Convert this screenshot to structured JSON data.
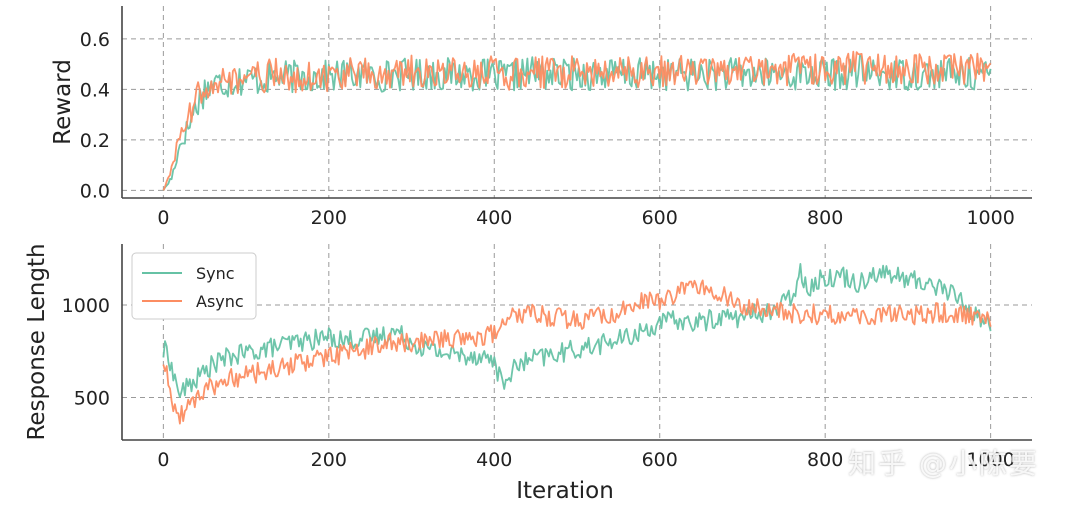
{
  "watermark": "知乎 @小陈要",
  "colors": {
    "sync": "#66c2a5",
    "async": "#fc8d62"
  },
  "chart_data": [
    {
      "type": "line",
      "xlabel": "",
      "ylabel": "Reward",
      "xlim": [
        -50,
        1050
      ],
      "ylim": [
        -0.03,
        0.73
      ],
      "xticks": [
        0,
        200,
        400,
        600,
        800,
        1000
      ],
      "yticks": [
        0.0,
        0.2,
        0.4,
        0.6
      ],
      "ytick_labels": [
        "0.0",
        "0.2",
        "0.4",
        "0.6"
      ],
      "grid": true,
      "series": [
        {
          "key": "sync",
          "x": [
            0,
            10,
            20,
            30,
            40,
            50,
            60,
            80,
            100,
            120,
            140,
            160,
            180,
            200,
            220,
            240,
            260,
            280,
            300,
            320,
            340,
            360,
            380,
            400,
            420,
            440,
            460,
            480,
            500,
            520,
            540,
            560,
            580,
            600,
            620,
            640,
            660,
            680,
            700,
            720,
            740,
            760,
            780,
            800,
            820,
            840,
            860,
            880,
            900,
            920,
            940,
            960,
            980,
            1000
          ],
          "y": [
            0.0,
            0.05,
            0.18,
            0.25,
            0.34,
            0.4,
            0.42,
            0.43,
            0.44,
            0.44,
            0.45,
            0.45,
            0.45,
            0.45,
            0.46,
            0.46,
            0.45,
            0.46,
            0.46,
            0.46,
            0.46,
            0.46,
            0.46,
            0.45,
            0.45,
            0.47,
            0.46,
            0.46,
            0.46,
            0.46,
            0.46,
            0.46,
            0.46,
            0.46,
            0.46,
            0.46,
            0.46,
            0.46,
            0.46,
            0.46,
            0.46,
            0.46,
            0.46,
            0.46,
            0.46,
            0.47,
            0.46,
            0.46,
            0.46,
            0.46,
            0.46,
            0.46,
            0.46,
            0.45
          ]
        },
        {
          "key": "async",
          "x": [
            0,
            10,
            20,
            30,
            40,
            50,
            60,
            80,
            100,
            120,
            140,
            160,
            180,
            200,
            220,
            240,
            260,
            280,
            300,
            320,
            340,
            360,
            380,
            400,
            420,
            440,
            460,
            480,
            500,
            520,
            540,
            560,
            580,
            600,
            620,
            640,
            660,
            680,
            700,
            720,
            740,
            760,
            780,
            800,
            820,
            840,
            860,
            880,
            900,
            920,
            940,
            960,
            980,
            1000
          ],
          "y": [
            0.0,
            0.08,
            0.22,
            0.28,
            0.36,
            0.42,
            0.44,
            0.43,
            0.44,
            0.45,
            0.46,
            0.45,
            0.45,
            0.45,
            0.46,
            0.46,
            0.46,
            0.46,
            0.47,
            0.46,
            0.47,
            0.46,
            0.46,
            0.47,
            0.46,
            0.47,
            0.47,
            0.47,
            0.47,
            0.46,
            0.47,
            0.47,
            0.47,
            0.47,
            0.47,
            0.47,
            0.47,
            0.48,
            0.47,
            0.48,
            0.48,
            0.48,
            0.48,
            0.48,
            0.48,
            0.49,
            0.48,
            0.48,
            0.48,
            0.48,
            0.48,
            0.48,
            0.48,
            0.48
          ]
        }
      ]
    },
    {
      "type": "line",
      "xlabel": "Iteration",
      "ylabel": "Response Length",
      "xlim": [
        -50,
        1050
      ],
      "ylim": [
        270,
        1330
      ],
      "xticks": [
        0,
        200,
        400,
        600,
        800,
        1000
      ],
      "yticks": [
        500,
        1000
      ],
      "ytick_labels": [
        "500",
        "1000"
      ],
      "grid": true,
      "legend": {
        "location": "top-left"
      },
      "series": [
        {
          "key": "sync",
          "name": "Sync",
          "x": [
            0,
            5,
            10,
            20,
            30,
            40,
            60,
            80,
            100,
            120,
            140,
            160,
            180,
            200,
            220,
            240,
            260,
            280,
            300,
            320,
            340,
            360,
            380,
            400,
            410,
            420,
            440,
            460,
            480,
            500,
            520,
            540,
            560,
            580,
            600,
            620,
            640,
            660,
            680,
            700,
            720,
            740,
            760,
            770,
            780,
            800,
            820,
            840,
            860,
            880,
            900,
            920,
            940,
            960,
            980,
            1000
          ],
          "y": [
            740,
            770,
            650,
            520,
            560,
            600,
            680,
            720,
            740,
            760,
            780,
            800,
            810,
            830,
            810,
            820,
            830,
            860,
            800,
            760,
            740,
            730,
            730,
            700,
            560,
            640,
            700,
            720,
            740,
            760,
            780,
            800,
            820,
            860,
            900,
            920,
            900,
            920,
            940,
            930,
            960,
            970,
            1050,
            1180,
            1100,
            1150,
            1160,
            1120,
            1180,
            1160,
            1140,
            1120,
            1100,
            1040,
            950,
            900
          ]
        },
        {
          "key": "async",
          "name": "Async",
          "x": [
            0,
            5,
            10,
            20,
            30,
            40,
            60,
            80,
            100,
            120,
            140,
            160,
            180,
            200,
            220,
            240,
            260,
            280,
            300,
            320,
            340,
            360,
            380,
            400,
            420,
            440,
            460,
            480,
            500,
            520,
            540,
            560,
            580,
            600,
            620,
            640,
            660,
            680,
            700,
            720,
            740,
            760,
            780,
            800,
            820,
            840,
            860,
            880,
            900,
            920,
            940,
            960,
            980,
            1000
          ],
          "y": [
            700,
            600,
            480,
            400,
            460,
            500,
            560,
            600,
            620,
            640,
            660,
            680,
            700,
            720,
            740,
            760,
            780,
            800,
            800,
            810,
            820,
            830,
            830,
            850,
            930,
            950,
            940,
            930,
            920,
            930,
            950,
            980,
            1020,
            1030,
            1060,
            1100,
            1080,
            1040,
            1000,
            980,
            970,
            960,
            950,
            950,
            940,
            930,
            940,
            950,
            940,
            950,
            960,
            950,
            940,
            930
          ]
        }
      ]
    }
  ]
}
